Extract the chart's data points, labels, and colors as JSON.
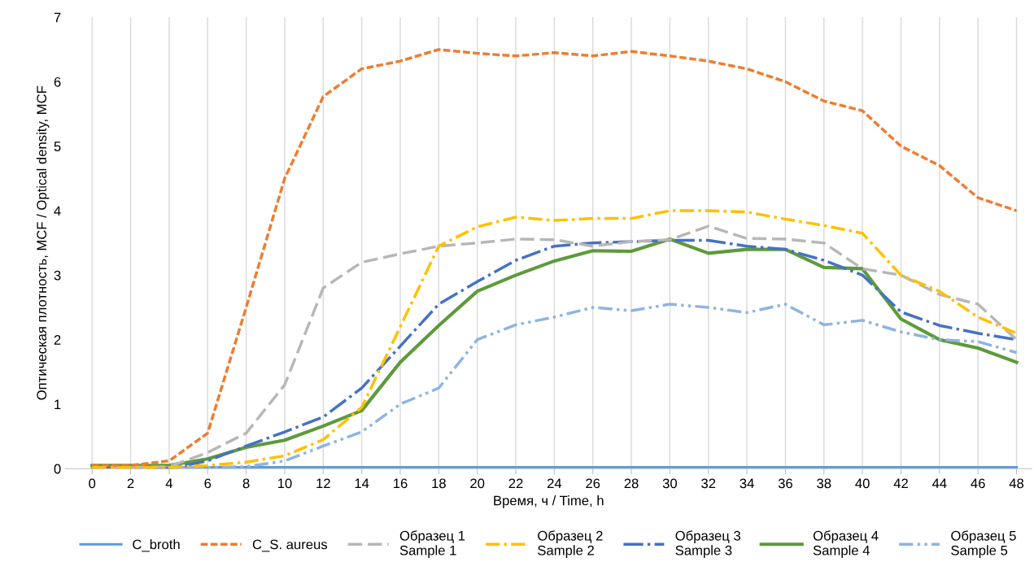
{
  "chart_data": {
    "type": "line",
    "xlabel": "Время, ч / Time, h",
    "ylabel": "Оптическая плотность, MCF / Optical density, MCF",
    "categories": [
      "0",
      "2",
      "4",
      "6",
      "8",
      "10",
      "12",
      "14",
      "16",
      "18",
      "20",
      "22",
      "24",
      "26",
      "28",
      "30",
      "32",
      "34",
      "36",
      "38",
      "40",
      "42",
      "44",
      "46",
      "48"
    ],
    "ylim": [
      0,
      7
    ],
    "yticks": [
      0,
      1,
      2,
      3,
      4,
      5,
      6,
      7
    ],
    "grid": "x",
    "legend": "bottom",
    "series": [
      {
        "name": "C_broth",
        "color": "#5b9bd5",
        "line_style": "solid",
        "values": [
          0.02,
          0.02,
          0.02,
          0.02,
          0.02,
          0.02,
          0.02,
          0.02,
          0.02,
          0.02,
          0.02,
          0.02,
          0.02,
          0.02,
          0.02,
          0.02,
          0.02,
          0.02,
          0.02,
          0.02,
          0.02,
          0.02,
          0.02,
          0.02,
          0.02
        ]
      },
      {
        "name": "C_S. aureus",
        "color": "#ed7d31",
        "line_style": "dashed",
        "values": [
          0.05,
          0.05,
          0.12,
          0.55,
          2.5,
          4.5,
          5.77,
          6.2,
          6.32,
          6.5,
          6.44,
          6.4,
          6.45,
          6.4,
          6.47,
          6.4,
          6.32,
          6.2,
          6.0,
          5.7,
          5.55,
          5.0,
          4.7,
          4.2,
          4.0
        ]
      },
      {
        "name": "Образец 1\nSample 1",
        "color": "#b7b7b7",
        "line_style": "longdash",
        "values": [
          0.02,
          0.02,
          0.03,
          0.25,
          0.55,
          1.3,
          2.8,
          3.2,
          3.33,
          3.45,
          3.5,
          3.56,
          3.55,
          3.45,
          3.52,
          3.55,
          3.76,
          3.57,
          3.56,
          3.5,
          3.1,
          3.0,
          2.7,
          2.55,
          2.0
        ]
      },
      {
        "name": "Образец 2\nSample 2",
        "color": "#ffc000",
        "line_style": "dashdot",
        "values": [
          0.02,
          0.02,
          0.02,
          0.05,
          0.1,
          0.2,
          0.45,
          0.95,
          2.2,
          3.45,
          3.75,
          3.9,
          3.85,
          3.88,
          3.88,
          4.0,
          4.0,
          3.98,
          3.87,
          3.77,
          3.65,
          3.0,
          2.75,
          2.35,
          2.1
        ]
      },
      {
        "name": "Образец 3\nSample 3",
        "color": "#4472c4",
        "line_style": "longdashdot",
        "values": [
          0.02,
          0.02,
          0.0,
          0.12,
          0.35,
          0.57,
          0.8,
          1.25,
          1.9,
          2.55,
          2.9,
          3.23,
          3.45,
          3.5,
          3.52,
          3.54,
          3.54,
          3.45,
          3.4,
          3.23,
          3.0,
          2.43,
          2.22,
          2.1,
          2.0
        ]
      },
      {
        "name": "Образец 4\nSample 4",
        "color": "#5e9a3c",
        "line_style": "solid",
        "values": [
          0.05,
          0.05,
          0.05,
          0.15,
          0.33,
          0.44,
          0.66,
          0.9,
          1.65,
          2.22,
          2.75,
          3.0,
          3.22,
          3.38,
          3.37,
          3.56,
          3.34,
          3.4,
          3.4,
          3.12,
          3.1,
          2.32,
          2.0,
          1.87,
          1.65
        ]
      },
      {
        "name": "Образец 5\nSample 5",
        "color": "#8eb4e3",
        "line_style": "dashdotdot",
        "values": [
          0.02,
          0.02,
          0.02,
          0.02,
          0.03,
          0.12,
          0.35,
          0.57,
          1.0,
          1.25,
          2.0,
          2.23,
          2.35,
          2.5,
          2.45,
          2.55,
          2.5,
          2.42,
          2.55,
          2.23,
          2.3,
          2.12,
          2.0,
          1.97,
          1.8
        ]
      }
    ]
  }
}
